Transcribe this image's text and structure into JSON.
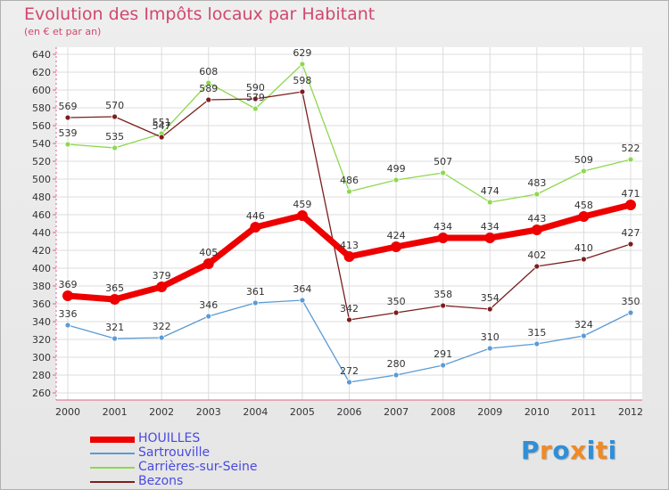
{
  "header": {
    "title": "Evolution des Impôts locaux par Habitant",
    "subtitle": "(en € et par an)"
  },
  "chart_data": {
    "type": "line",
    "title": "Evolution des Impôts locaux par Habitant",
    "subtitle": "(en € et par an)",
    "xlabel": "",
    "ylabel": "",
    "ylim": [
      260,
      640
    ],
    "ytick_step": 20,
    "grid": true,
    "categories": [
      "2000",
      "2001",
      "2002",
      "2003",
      "2004",
      "2005",
      "2006",
      "2007",
      "2008",
      "2009",
      "2010",
      "2011",
      "2012"
    ],
    "y_ticks": [
      "260",
      "280",
      "300",
      "320",
      "340",
      "360",
      "380",
      "400",
      "420",
      "440",
      "460",
      "480",
      "500",
      "520",
      "540",
      "560",
      "580",
      "600",
      "620",
      "640"
    ],
    "series": [
      {
        "name": "HOUILLES",
        "color": "#ee0000",
        "values": [
          369,
          365,
          379,
          405,
          446,
          459,
          413,
          424,
          434,
          434,
          443,
          458,
          471
        ]
      },
      {
        "name": "Sartrouville",
        "color": "#5b9bd5",
        "values": [
          336,
          321,
          322,
          346,
          361,
          364,
          272,
          280,
          291,
          310,
          315,
          324,
          350
        ]
      },
      {
        "name": "Carrières-sur-Seine",
        "color": "#8ed84f",
        "values": [
          539,
          535,
          551,
          608,
          579,
          629,
          486,
          499,
          507,
          474,
          483,
          509,
          522
        ]
      },
      {
        "name": "Bezons",
        "color": "#7b1e1e",
        "values": [
          569,
          570,
          547,
          589,
          590,
          598,
          342,
          350,
          358,
          354,
          402,
          410,
          427
        ]
      }
    ],
    "legend_position": "bottom-left"
  },
  "legend": {
    "items": [
      {
        "label": "HOUILLES",
        "color": "#ee0000"
      },
      {
        "label": "Sartrouville",
        "color": "#5b9bd5"
      },
      {
        "label": "Carrières-sur-Seine",
        "color": "#8ed84f"
      },
      {
        "label": "Bezons",
        "color": "#7b1e1e"
      }
    ]
  },
  "logo": {
    "letters": [
      "P",
      "r",
      "o",
      "x",
      "i",
      "t",
      "i"
    ],
    "colors": [
      "#2f8fd8",
      "#f08a24",
      "#2f8fd8",
      "#f08a24",
      "#2f8fd8",
      "#f08a24",
      "#2f8fd8"
    ]
  }
}
